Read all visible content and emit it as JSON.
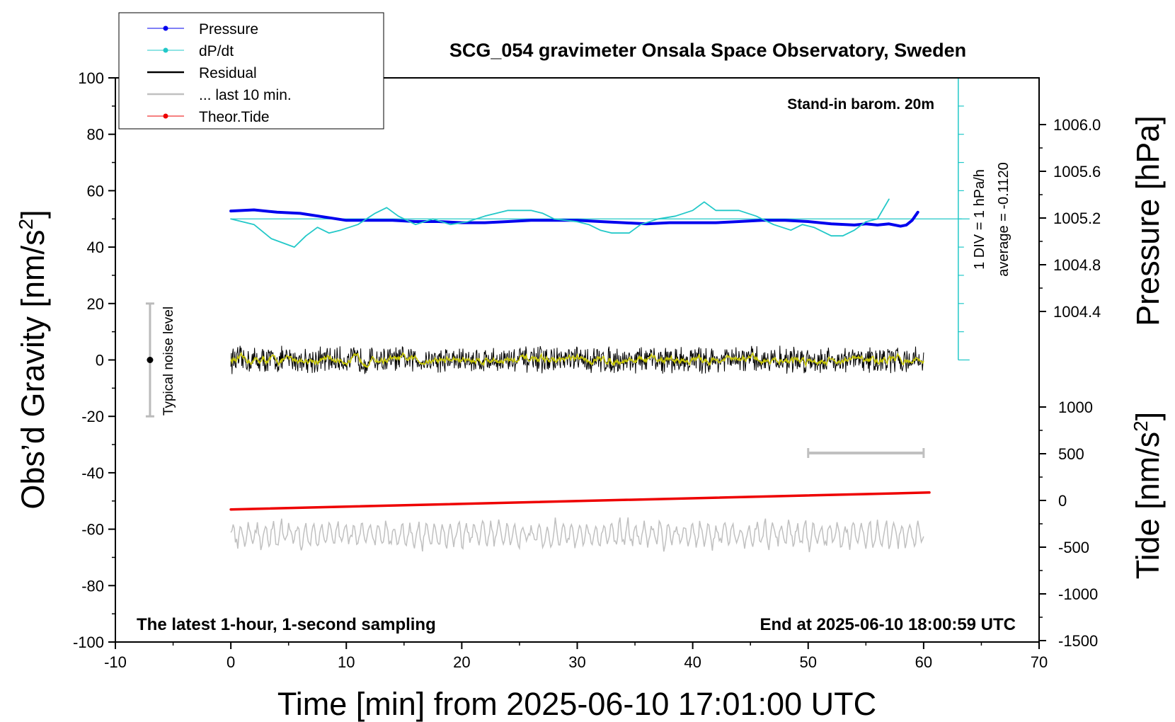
{
  "chart_data": {
    "type": "line",
    "title": "SCG_054 gravimeter Onsala Space Observatory, Sweden",
    "xlabel": "Time [min] from 2025-06-10 17:01:00 UTC",
    "ylabel_left_main": "Obs’d Gravity [nm/s",
    "ylabel_left_sup": "2",
    "ylabel_left_end": "]",
    "ylabel_right_top": "Pressure [hPa]",
    "ylabel_right_bottom_main": "Tide [nm/s",
    "ylabel_right_bottom_sup": "2",
    "ylabel_right_bottom_end": "]",
    "xlim": [
      -10,
      70
    ],
    "ylim_left": [
      -100,
      100
    ],
    "x_ticks": [
      "-10",
      "0",
      "10",
      "20",
      "30",
      "40",
      "50",
      "60",
      "70"
    ],
    "y_left_ticks": [
      "100",
      "80",
      "60",
      "40",
      "20",
      "0",
      "-20",
      "-40",
      "-60",
      "-80",
      "-100"
    ],
    "pressure_ticks": [
      "1006.0",
      "1005.6",
      "1005.2",
      "1004.8",
      "1004.4"
    ],
    "tide_ticks": [
      "1000",
      "500",
      "0",
      "-500",
      "-1000",
      "-1500"
    ],
    "legend": {
      "placement": "top-left",
      "items": [
        {
          "label": "Pressure",
          "color": "#0000ee",
          "marker": true
        },
        {
          "label": "dP/dt",
          "color": "#22c8c8",
          "marker": true
        },
        {
          "label": "Residual",
          "color": "#000000",
          "marker": false
        },
        {
          "label": "... last 10 min.",
          "color": "#c0c0c0",
          "marker": false
        },
        {
          "label": "Theor.Tide",
          "color": "#ee0000",
          "marker": true
        }
      ]
    },
    "annotations": {
      "stand_in": "Stand-in barom. 20m",
      "div_label": "1 DIV = 1 hPa/h",
      "average_label": "average = -0.1120",
      "noise_label": "Typical noise level",
      "bottom_left": "The latest 1-hour, 1-second sampling",
      "bottom_right": "End at 2025-06-10 18:00:59 UTC"
    },
    "noise_bar": {
      "x": -7,
      "y_center": 0,
      "y_range": [
        -20,
        20
      ]
    },
    "last10_bar": {
      "x_range": [
        50,
        60
      ],
      "y": -33
    },
    "series": [
      {
        "name": "Pressure",
        "axis": "pressure",
        "color": "#0000ee",
        "x": [
          0,
          2,
          4,
          6,
          8,
          10,
          12,
          14,
          16,
          18,
          20,
          22,
          24,
          26,
          28,
          30,
          32,
          34,
          36,
          38,
          40,
          42,
          44,
          46,
          48,
          50,
          52,
          54,
          55,
          56,
          57,
          58,
          58.5,
          59,
          59.5
        ],
        "values": [
          1005.26,
          1005.27,
          1005.25,
          1005.24,
          1005.21,
          1005.18,
          1005.18,
          1005.18,
          1005.17,
          1005.17,
          1005.16,
          1005.16,
          1005.17,
          1005.18,
          1005.18,
          1005.18,
          1005.17,
          1005.16,
          1005.15,
          1005.16,
          1005.16,
          1005.16,
          1005.17,
          1005.18,
          1005.18,
          1005.17,
          1005.15,
          1005.14,
          1005.15,
          1005.14,
          1005.15,
          1005.13,
          1005.14,
          1005.18,
          1005.25
        ]
      },
      {
        "name": "dP/dt",
        "axis": "left",
        "color": "#22c8c8",
        "x": [
          0,
          2,
          3.5,
          5.5,
          6.5,
          7.5,
          8.5,
          9.5,
          11,
          12.5,
          13.5,
          14.5,
          16,
          17.5,
          19,
          20.5,
          22,
          24,
          26,
          27,
          28,
          30,
          31,
          32,
          33,
          34.5,
          35.5,
          37,
          38.5,
          40,
          41,
          42,
          43,
          44,
          45.5,
          47,
          48.5,
          49.5,
          50.5,
          52,
          53,
          54,
          55,
          56,
          57
        ],
        "values": [
          50,
          48,
          43,
          40,
          44,
          47,
          45,
          46,
          48,
          52,
          54,
          51,
          48,
          50,
          48,
          49,
          51,
          53,
          53,
          52,
          50,
          49,
          48,
          46,
          45,
          45,
          48,
          50,
          51,
          53,
          56,
          53,
          53,
          53,
          51,
          48,
          46,
          48,
          47,
          44,
          44,
          46,
          49,
          50,
          57
        ]
      },
      {
        "name": "Theor.Tide",
        "axis": "left",
        "color": "#ee0000",
        "x": [
          0,
          60.5
        ],
        "values": [
          -53,
          -47
        ]
      }
    ]
  }
}
